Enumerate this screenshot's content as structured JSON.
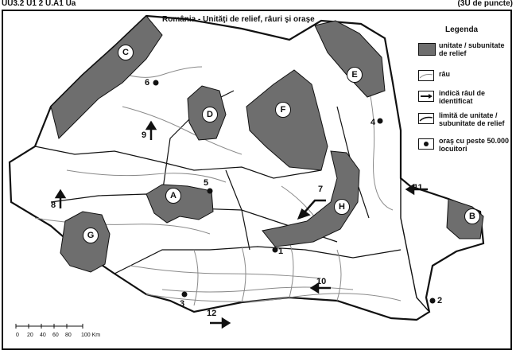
{
  "header": {
    "left_text": "UU3.2 U1 2 U.A1 Ua",
    "right_text": "(3U de puncte)"
  },
  "map": {
    "title": "România - Unităţi de relief, râuri şi oraşe",
    "relief_labels": [
      "A",
      "B",
      "C",
      "D",
      "E",
      "F",
      "G",
      "H"
    ],
    "number_labels": [
      "1",
      "2",
      "3",
      "4",
      "5",
      "6",
      "7",
      "8",
      "9",
      "10",
      "11",
      "12"
    ],
    "scale": {
      "ticks": [
        "0",
        "20",
        "40",
        "60",
        "80",
        "100 Km"
      ]
    }
  },
  "legend": {
    "title": "Legenda",
    "items": [
      {
        "label": "unitate / subunitate de relief"
      },
      {
        "label": "râu"
      },
      {
        "label": "indică râul de identificat"
      },
      {
        "label": "limită de unitate / subunitate de relief"
      },
      {
        "label": "oraş cu peste 50.000 locuitori"
      }
    ]
  },
  "colors": {
    "relief_fill": "#6e6e6e",
    "line": "#111111",
    "river": "#8a8a8a",
    "background": "#ffffff"
  }
}
